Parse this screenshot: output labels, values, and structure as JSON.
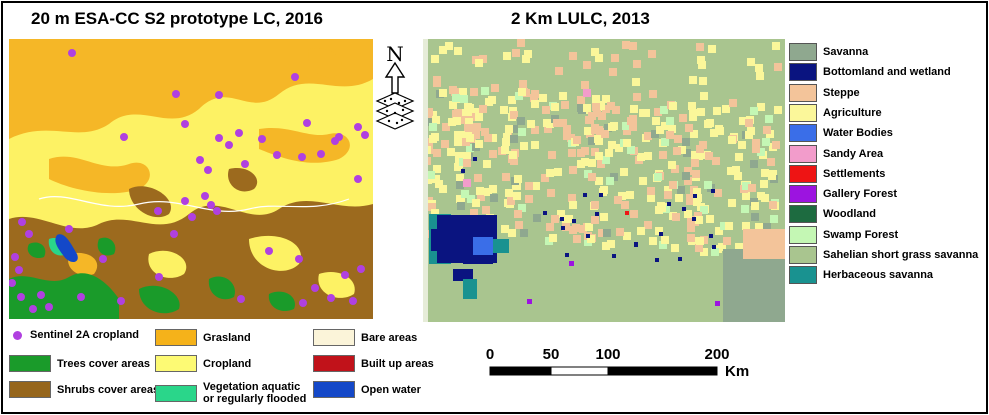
{
  "left_map": {
    "title": "20 m ESA-CC S2 prototype LC, 2016",
    "legend": [
      {
        "label": "Sentinel 2A cropland",
        "color": "#b040e0",
        "kind": "dot"
      },
      {
        "label": "Grasland",
        "color": "#f5b21a",
        "kind": "box"
      },
      {
        "label": "Bare areas",
        "color": "#fbf4d9",
        "kind": "box"
      },
      {
        "label": "Trees cover areas",
        "color": "#1a9b2a",
        "kind": "box"
      },
      {
        "label": "Cropland",
        "color": "#fdfa74",
        "kind": "box"
      },
      {
        "label": "Built up areas",
        "color": "#c1121a",
        "kind": "box"
      },
      {
        "label": "Shrubs cover areas",
        "color": "#96661c",
        "kind": "box"
      },
      {
        "label": "Vegetation aquatic",
        "label2": "or regularly flooded",
        "color": "#2ad68a",
        "kind": "box"
      },
      {
        "label": "Open water",
        "color": "#1448c8",
        "kind": "box"
      }
    ]
  },
  "right_map": {
    "title": "2 Km LULC, 2013",
    "legend": [
      {
        "label": "Savanna",
        "color": "#8fa88f"
      },
      {
        "label": "Bottomland and wetland",
        "color": "#0a1480"
      },
      {
        "label": "Steppe",
        "color": "#f3c49a"
      },
      {
        "label": "Agriculture",
        "color": "#fbf79a"
      },
      {
        "label": "Water Bodies",
        "color": "#3a6ee8"
      },
      {
        "label": "Sandy Area",
        "color": "#f29ccb"
      },
      {
        "label": "Settlements",
        "color": "#ee1414"
      },
      {
        "label": "Gallery Forest",
        "color": "#9c14e0"
      },
      {
        "label": "Woodland",
        "color": "#1d6b40"
      },
      {
        "label": "Swamp Forest",
        "color": "#c4f7b4"
      },
      {
        "label": "Sahelian short grass savanna",
        "color": "#a9c58f"
      },
      {
        "label": "Herbaceous savanna",
        "color": "#199290"
      }
    ]
  },
  "north": {
    "label": "N"
  },
  "scale": {
    "ticks": [
      "0",
      "50",
      "100",
      "200"
    ],
    "unit": "Km"
  }
}
